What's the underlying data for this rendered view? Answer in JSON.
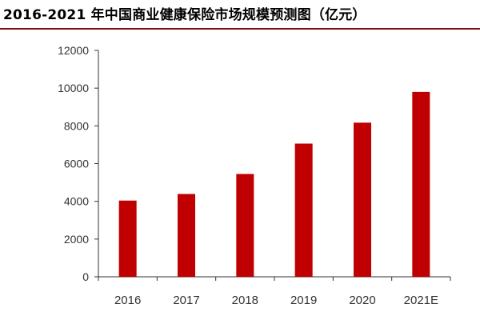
{
  "chart_data": {
    "type": "bar",
    "title": "2016-2021 年中国商业健康保险市场规模预测图（亿元）",
    "xlabel": "",
    "ylabel": "",
    "categories": [
      "2016",
      "2017",
      "2018",
      "2019",
      "2020",
      "2021E"
    ],
    "values": [
      4040,
      4390,
      5450,
      7060,
      8170,
      9800
    ],
    "ylim": [
      0,
      12000
    ],
    "yticks": [
      "0",
      "2000",
      "4000",
      "6000",
      "8000",
      "10000",
      "12000"
    ],
    "grid": false,
    "legend": "none",
    "colors": {
      "bar": "#c00000",
      "axis": "#333333",
      "title_rule": "#7f1010"
    }
  }
}
